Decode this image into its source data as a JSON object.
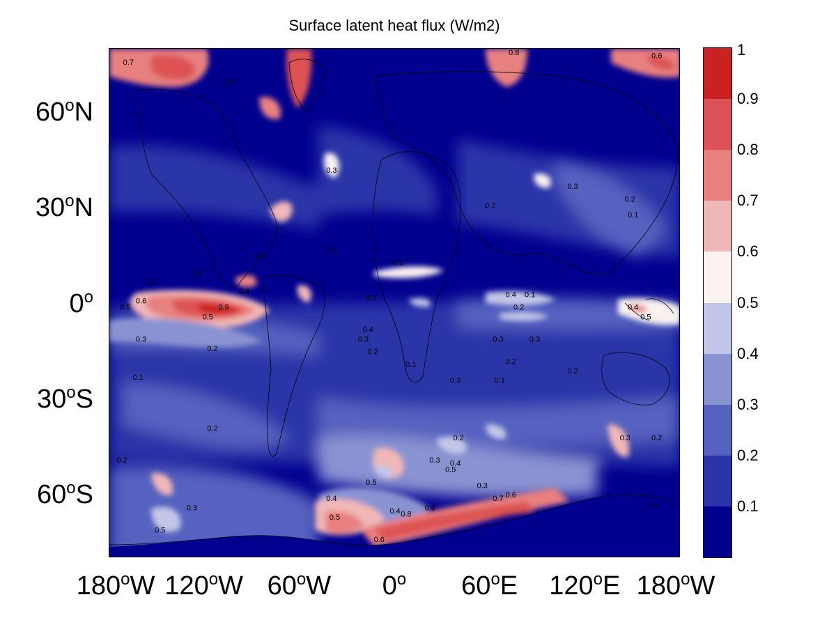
{
  "title": "Surface latent heat flux (W/m2)",
  "y_ticks": [
    {
      "lat": 60,
      "num": "60",
      "hemi": "N"
    },
    {
      "lat": 30,
      "num": "30",
      "hemi": "N"
    },
    {
      "lat": 0,
      "num": "0",
      "hemi": ""
    },
    {
      "lat": -30,
      "num": "30",
      "hemi": "S"
    },
    {
      "lat": -60,
      "num": "60",
      "hemi": "S"
    }
  ],
  "x_ticks": [
    {
      "lon": -180,
      "num": "180",
      "hemi": "W"
    },
    {
      "lon": -120,
      "num": "120",
      "hemi": "W"
    },
    {
      "lon": -60,
      "num": "60",
      "hemi": "W"
    },
    {
      "lon": 0,
      "num": "0",
      "hemi": ""
    },
    {
      "lon": 60,
      "num": "60",
      "hemi": "E"
    },
    {
      "lon": 120,
      "num": "120",
      "hemi": "E"
    },
    {
      "lon": 180,
      "num": "180",
      "hemi": "W"
    }
  ],
  "map_extent": {
    "lon": [
      -180,
      180
    ],
    "lat": [
      -80,
      80
    ]
  },
  "colorbar": {
    "levels": [
      0.1,
      0.2,
      0.3,
      0.4,
      0.5,
      0.6,
      0.7,
      0.8,
      0.9,
      1
    ],
    "labels": [
      "0.1",
      "0.2",
      "0.3",
      "0.4",
      "0.5",
      "0.6",
      "0.7",
      "0.8",
      "0.9",
      "1"
    ],
    "colors": [
      "#00008f",
      "#2a36a8",
      "#5562bf",
      "#8a93d2",
      "#c2c6e8",
      "#faf1f1",
      "#f1b7b7",
      "#e88080",
      "#dd5353",
      "#cc2121"
    ]
  },
  "contour_labels": [
    {
      "text": "0.8",
      "lon": -105,
      "lat": 69
    },
    {
      "text": "0.7",
      "lon": -168,
      "lat": 75
    },
    {
      "text": "0.3",
      "lon": -40,
      "lat": 41
    },
    {
      "text": "0.9",
      "lon": -108,
      "lat": -2
    },
    {
      "text": "0.5",
      "lon": -170,
      "lat": -2
    },
    {
      "text": "0.6",
      "lon": -160,
      "lat": 0
    },
    {
      "text": "0.4",
      "lon": -95,
      "lat": 3
    },
    {
      "text": "0.2",
      "lon": -155,
      "lat": 6
    },
    {
      "text": "0.3",
      "lon": -125,
      "lat": 9
    },
    {
      "text": "0.5",
      "lon": -118,
      "lat": -5
    },
    {
      "text": "0.2",
      "lon": -115,
      "lat": -15
    },
    {
      "text": "0.3",
      "lon": -160,
      "lat": -12
    },
    {
      "text": "0.2",
      "lon": -115,
      "lat": -40
    },
    {
      "text": "0.3",
      "lon": -128,
      "lat": -65
    },
    {
      "text": "0.5",
      "lon": -148,
      "lat": -72
    },
    {
      "text": "0.2",
      "lon": -172,
      "lat": -50
    },
    {
      "text": "0.1",
      "lon": -162,
      "lat": -24
    },
    {
      "text": "0.3",
      "lon": -15,
      "lat": 1
    },
    {
      "text": "0.4",
      "lon": -17,
      "lat": -9
    },
    {
      "text": "0.2",
      "lon": -14,
      "lat": -16
    },
    {
      "text": "0.3",
      "lon": -20,
      "lat": -12
    },
    {
      "text": "0.3",
      "lon": 25,
      "lat": -50
    },
    {
      "text": "0.4",
      "lon": -40,
      "lat": -62
    },
    {
      "text": "0.5",
      "lon": -38,
      "lat": -68
    },
    {
      "text": "0.5",
      "lon": -15,
      "lat": -57
    },
    {
      "text": "0.5",
      "lon": 35,
      "lat": -53
    },
    {
      "text": "0.4",
      "lon": 38,
      "lat": -51
    },
    {
      "text": "0.4",
      "lon": 0,
      "lat": -66
    },
    {
      "text": "0.6",
      "lon": 22,
      "lat": -65
    },
    {
      "text": "0.8",
      "lon": 7,
      "lat": -67
    },
    {
      "text": "0.6",
      "lon": -10,
      "lat": -75
    },
    {
      "text": "0.3",
      "lon": 55,
      "lat": -58
    },
    {
      "text": "0.7",
      "lon": 65,
      "lat": -62
    },
    {
      "text": "0.6",
      "lon": 73,
      "lat": -61
    },
    {
      "text": "0.3",
      "lon": 38,
      "lat": -25
    },
    {
      "text": "0.2",
      "lon": 40,
      "lat": -43
    },
    {
      "text": "0.3",
      "lon": 65,
      "lat": -12
    },
    {
      "text": "0.3",
      "lon": 88,
      "lat": -12
    },
    {
      "text": "0.2",
      "lon": 73,
      "lat": -19
    },
    {
      "text": "0.1",
      "lon": 66,
      "lat": -25
    },
    {
      "text": "0.1",
      "lon": 10,
      "lat": -20
    },
    {
      "text": "0.2",
      "lon": 2,
      "lat": 12
    },
    {
      "text": "0.4",
      "lon": 73,
      "lat": 2
    },
    {
      "text": "0.2",
      "lon": 78,
      "lat": -2
    },
    {
      "text": "0.1",
      "lon": 85,
      "lat": 2
    },
    {
      "text": "0.2",
      "lon": 60,
      "lat": 30
    },
    {
      "text": "0.3",
      "lon": 112,
      "lat": 36
    },
    {
      "text": "0.2",
      "lon": 148,
      "lat": 32
    },
    {
      "text": "0.1",
      "lon": 150,
      "lat": 27
    },
    {
      "text": "0.4",
      "lon": 150,
      "lat": -2
    },
    {
      "text": "0.5",
      "lon": 158,
      "lat": -5
    },
    {
      "text": "0.2",
      "lon": 112,
      "lat": -22
    },
    {
      "text": "0.3",
      "lon": 145,
      "lat": -43
    },
    {
      "text": "0.2",
      "lon": 165,
      "lat": -43
    },
    {
      "text": "0.4",
      "lon": 162,
      "lat": -64
    },
    {
      "text": "0.8",
      "lon": 75,
      "lat": 78
    },
    {
      "text": "0.6",
      "lon": 165,
      "lat": 77
    },
    {
      "text": "0.1",
      "lon": -85,
      "lat": 14
    },
    {
      "text": "0.1",
      "lon": -40,
      "lat": 16
    }
  ]
}
